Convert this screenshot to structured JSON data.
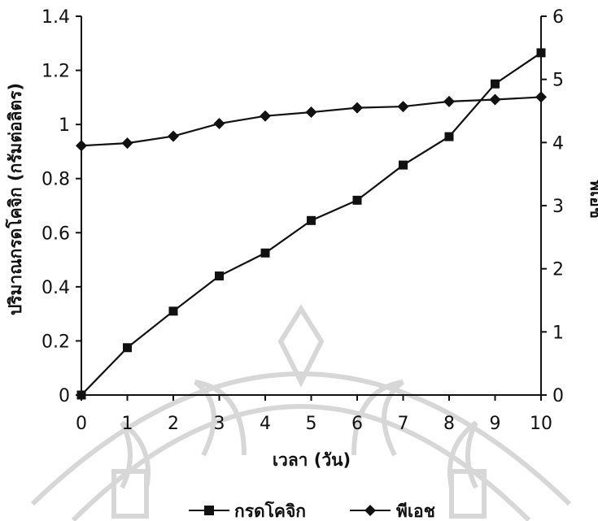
{
  "chart_data": {
    "type": "line",
    "x": [
      0,
      1,
      2,
      3,
      4,
      5,
      6,
      7,
      8,
      9,
      10
    ],
    "xlabel": "เวลา (วัน)",
    "ylabel_left": "ปริมาณกรดโคจิก (กรัมต่อลิตร)",
    "ylabel_right": "พีเอช",
    "xlim": [
      0,
      10
    ],
    "ylim_left": [
      0,
      1.4
    ],
    "ylim_right": [
      0,
      6
    ],
    "x_ticks": [
      0,
      1,
      2,
      3,
      4,
      5,
      6,
      7,
      8,
      9,
      10
    ],
    "y_left_ticks": [
      "0",
      "0.2",
      "0.4",
      "0.6",
      "0.8",
      "1",
      "1.2",
      "1.4"
    ],
    "y_right_ticks": [
      "0",
      "1",
      "2",
      "3",
      "4",
      "5",
      "6"
    ],
    "series": [
      {
        "name": "กรดโคจิก",
        "axis": "left",
        "marker": "square",
        "values": [
          0.0,
          0.175,
          0.31,
          0.44,
          0.525,
          0.645,
          0.72,
          0.85,
          0.955,
          1.15,
          1.265
        ]
      },
      {
        "name": "พีเอช",
        "axis": "right",
        "marker": "diamond",
        "values": [
          3.95,
          3.99,
          4.1,
          4.3,
          4.42,
          4.48,
          4.55,
          4.57,
          4.65,
          4.68,
          4.72
        ]
      }
    ],
    "grid": false,
    "legend_position": "bottom-center",
    "colors": {
      "line": "#111111",
      "watermark": "#d7d7d7"
    }
  }
}
